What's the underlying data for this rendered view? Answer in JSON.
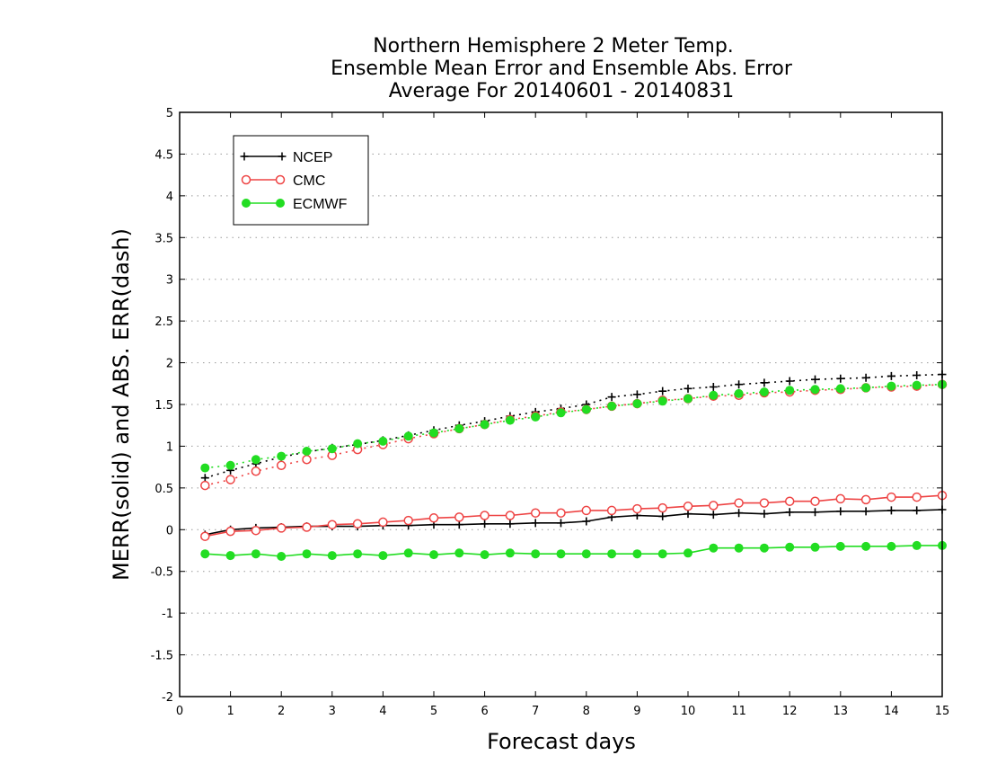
{
  "chart_data": {
    "type": "line",
    "title_lines": [
      "Northern Hemisphere 2 Meter Temp.",
      "Ensemble Mean Error and Ensemble Abs. Error",
      "Average For 20140601 - 20140831"
    ],
    "xlabel": "Forecast days",
    "ylabel": "MERR(solid) and ABS. ERR(dash)",
    "xlim": [
      0,
      15
    ],
    "ylim": [
      -2,
      5
    ],
    "x_ticks": [
      0,
      1,
      2,
      3,
      4,
      5,
      6,
      7,
      8,
      9,
      10,
      11,
      12,
      13,
      14,
      15
    ],
    "x_tick_labels": [
      "0",
      "1",
      "2",
      "3",
      "4",
      "5",
      "6",
      "7",
      "8",
      "9",
      "10",
      "11",
      "12",
      "13",
      "14",
      "15"
    ],
    "y_ticks": [
      -2,
      -1.5,
      -1,
      -0.5,
      0,
      0.5,
      1,
      1.5,
      2,
      2.5,
      3,
      3.5,
      4,
      4.5,
      5
    ],
    "y_tick_labels": [
      "-2",
      "-1.5",
      "-1",
      "-0.5",
      "0",
      "0.5",
      "1",
      "1.5",
      "2",
      "2.5",
      "3",
      "3.5",
      "4",
      "4.5",
      "5"
    ],
    "grid": "horizontal dotted",
    "legend_position": "top-left",
    "x": [
      0.5,
      1,
      1.5,
      2,
      2.5,
      3,
      3.5,
      4,
      4.5,
      5,
      5.5,
      6,
      6.5,
      7,
      7.5,
      8,
      8.5,
      9,
      9.5,
      10,
      10.5,
      11,
      11.5,
      12,
      12.5,
      13,
      13.5,
      14,
      14.5,
      15
    ],
    "series": [
      {
        "name": "NCEP",
        "color": "#000000",
        "marker": "plus",
        "merr": [
          -0.06,
          0.0,
          0.02,
          0.03,
          0.04,
          0.04,
          0.04,
          0.05,
          0.05,
          0.06,
          0.06,
          0.07,
          0.07,
          0.08,
          0.08,
          0.1,
          0.15,
          0.17,
          0.16,
          0.19,
          0.18,
          0.2,
          0.19,
          0.21,
          0.21,
          0.22,
          0.22,
          0.23,
          0.23,
          0.24
        ],
        "abs_err": [
          0.62,
          0.71,
          0.79,
          0.87,
          0.93,
          0.98,
          1.02,
          1.07,
          1.13,
          1.19,
          1.25,
          1.3,
          1.36,
          1.41,
          1.45,
          1.5,
          1.59,
          1.62,
          1.66,
          1.69,
          1.71,
          1.74,
          1.76,
          1.78,
          1.8,
          1.81,
          1.82,
          1.84,
          1.85,
          1.86
        ]
      },
      {
        "name": "CMC",
        "color": "#ee4444",
        "marker": "open-circle",
        "merr": [
          -0.08,
          -0.02,
          -0.01,
          0.02,
          0.03,
          0.06,
          0.07,
          0.09,
          0.11,
          0.14,
          0.15,
          0.17,
          0.17,
          0.2,
          0.2,
          0.23,
          0.23,
          0.25,
          0.26,
          0.28,
          0.29,
          0.32,
          0.32,
          0.34,
          0.34,
          0.37,
          0.36,
          0.39,
          0.39,
          0.41
        ],
        "abs_err": [
          0.53,
          0.6,
          0.7,
          0.77,
          0.84,
          0.89,
          0.96,
          1.02,
          1.09,
          1.15,
          1.21,
          1.26,
          1.32,
          1.36,
          1.41,
          1.44,
          1.48,
          1.51,
          1.55,
          1.57,
          1.6,
          1.61,
          1.64,
          1.65,
          1.67,
          1.68,
          1.7,
          1.71,
          1.72,
          1.74
        ]
      },
      {
        "name": "ECMWF",
        "color": "#22dd22",
        "marker": "filled-circle",
        "merr": [
          -0.29,
          -0.31,
          -0.29,
          -0.32,
          -0.29,
          -0.31,
          -0.29,
          -0.31,
          -0.28,
          -0.3,
          -0.28,
          -0.3,
          -0.28,
          -0.29,
          -0.29,
          -0.29,
          -0.29,
          -0.29,
          -0.29,
          -0.28,
          -0.22,
          -0.22,
          -0.22,
          -0.21,
          -0.21,
          -0.2,
          -0.2,
          -0.2,
          -0.19,
          -0.19
        ],
        "abs_err": [
          0.74,
          0.77,
          0.84,
          0.88,
          0.94,
          0.97,
          1.03,
          1.06,
          1.12,
          1.16,
          1.21,
          1.26,
          1.31,
          1.35,
          1.4,
          1.44,
          1.48,
          1.51,
          1.54,
          1.57,
          1.61,
          1.63,
          1.65,
          1.67,
          1.68,
          1.69,
          1.7,
          1.72,
          1.73,
          1.74
        ]
      }
    ]
  }
}
